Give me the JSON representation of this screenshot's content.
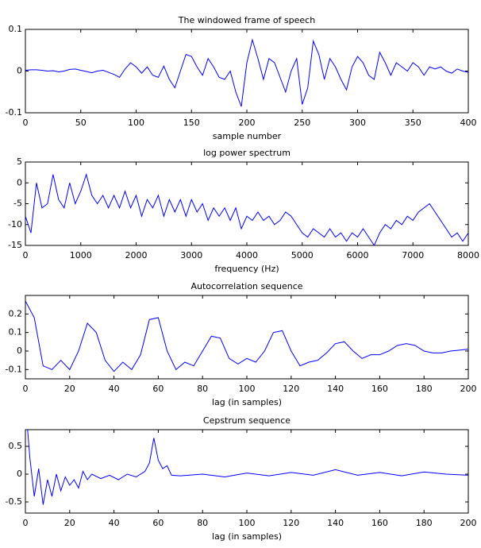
{
  "chart_data": [
    {
      "type": "line",
      "title": "The windowed frame of speech",
      "xlabel": "sample number",
      "x": [
        0,
        5,
        10,
        15,
        20,
        25,
        30,
        35,
        40,
        45,
        50,
        55,
        60,
        65,
        70,
        75,
        80,
        85,
        90,
        95,
        100,
        105,
        110,
        115,
        120,
        125,
        130,
        135,
        140,
        145,
        150,
        155,
        160,
        165,
        170,
        175,
        180,
        185,
        190,
        195,
        200,
        205,
        210,
        215,
        220,
        225,
        230,
        235,
        240,
        245,
        250,
        255,
        260,
        265,
        270,
        275,
        280,
        285,
        290,
        295,
        300,
        305,
        310,
        315,
        320,
        325,
        330,
        335,
        340,
        345,
        350,
        355,
        360,
        365,
        370,
        375,
        380,
        385,
        390,
        395,
        400
      ],
      "series": [
        {
          "color": "#0000ff",
          "values": [
            0.002,
            0.003,
            0.003,
            0.002,
            0.0,
            0.001,
            -0.002,
            0.0,
            0.004,
            0.005,
            0.002,
            -0.001,
            -0.004,
            0.0,
            0.002,
            -0.003,
            -0.008,
            -0.015,
            0.005,
            0.02,
            0.01,
            -0.005,
            0.01,
            -0.01,
            -0.015,
            0.012,
            -0.02,
            -0.04,
            0.0,
            0.04,
            0.035,
            0.01,
            -0.01,
            0.03,
            0.01,
            -0.015,
            -0.02,
            0.0,
            -0.05,
            -0.085,
            0.02,
            0.075,
            0.03,
            -0.02,
            0.03,
            0.02,
            -0.015,
            -0.05,
            0.0,
            0.03,
            -0.08,
            -0.04,
            0.072,
            0.04,
            -0.02,
            0.03,
            0.01,
            -0.02,
            -0.045,
            0.01,
            0.035,
            0.02,
            -0.01,
            -0.02,
            0.045,
            0.02,
            -0.01,
            0.02,
            0.01,
            0.0,
            0.02,
            0.01,
            -0.01,
            0.01,
            0.005,
            0.01,
            0.0,
            -0.005,
            0.005,
            0.0,
            -0.003
          ]
        }
      ],
      "xlim": [
        0,
        400
      ],
      "ylim": [
        -0.1,
        0.1
      ],
      "xticks": [
        0,
        50,
        100,
        150,
        200,
        250,
        300,
        350,
        400
      ],
      "yticks": [
        -0.1,
        0,
        0.1
      ]
    },
    {
      "type": "line",
      "title": "log power spectrum",
      "xlabel": "frequency (Hz)",
      "x": [
        0,
        100,
        200,
        300,
        400,
        500,
        600,
        700,
        800,
        900,
        1000,
        1100,
        1200,
        1300,
        1400,
        1500,
        1600,
        1700,
        1800,
        1900,
        2000,
        2100,
        2200,
        2300,
        2400,
        2500,
        2600,
        2700,
        2800,
        2900,
        3000,
        3100,
        3200,
        3300,
        3400,
        3500,
        3600,
        3700,
        3800,
        3900,
        4000,
        4100,
        4200,
        4300,
        4400,
        4500,
        4600,
        4700,
        4800,
        4900,
        5000,
        5100,
        5200,
        5300,
        5400,
        5500,
        5600,
        5700,
        5800,
        5900,
        6000,
        6100,
        6200,
        6300,
        6400,
        6500,
        6600,
        6700,
        6800,
        6900,
        7000,
        7100,
        7200,
        7300,
        7400,
        7500,
        7600,
        7700,
        7800,
        7900,
        8000
      ],
      "series": [
        {
          "color": "#0000ff",
          "values": [
            -8,
            -12,
            0,
            -6,
            -5,
            2,
            -4,
            -6,
            0,
            -5,
            -2,
            2,
            -3,
            -5,
            -3,
            -6,
            -3,
            -6,
            -2,
            -6,
            -3,
            -8,
            -4,
            -6,
            -3,
            -8,
            -4,
            -7,
            -4,
            -8,
            -4,
            -7,
            -5,
            -9,
            -6,
            -8,
            -6,
            -9,
            -6,
            -11,
            -8,
            -9,
            -7,
            -9,
            -8,
            -10,
            -9,
            -7,
            -8,
            -10,
            -12,
            -13,
            -11,
            -12,
            -13,
            -11,
            -13,
            -12,
            -14,
            -12,
            -13,
            -11,
            -13,
            -15,
            -12,
            -10,
            -11,
            -9,
            -10,
            -8,
            -9,
            -7,
            -6,
            -5,
            -7,
            -9,
            -11,
            -13,
            -12,
            -14,
            -12
          ]
        }
      ],
      "xlim": [
        0,
        8000
      ],
      "ylim": [
        -15,
        5
      ],
      "xticks": [
        0,
        1000,
        2000,
        3000,
        4000,
        5000,
        6000,
        7000,
        8000
      ],
      "yticks": [
        -15,
        -10,
        -5,
        0,
        5
      ]
    },
    {
      "type": "line",
      "title": "Autocorrelation sequence",
      "xlabel": "lag (in samples)",
      "x": [
        0,
        4,
        8,
        12,
        16,
        20,
        24,
        28,
        32,
        36,
        40,
        44,
        48,
        52,
        56,
        60,
        64,
        68,
        72,
        76,
        80,
        84,
        88,
        92,
        96,
        100,
        104,
        108,
        112,
        116,
        120,
        124,
        128,
        132,
        136,
        140,
        144,
        148,
        152,
        156,
        160,
        164,
        168,
        172,
        176,
        180,
        184,
        188,
        192,
        196,
        200
      ],
      "series": [
        {
          "color": "#0000ff",
          "values": [
            0.27,
            0.18,
            -0.08,
            -0.1,
            -0.05,
            -0.1,
            0.0,
            0.15,
            0.1,
            -0.05,
            -0.11,
            -0.06,
            -0.1,
            -0.02,
            0.17,
            0.18,
            0.0,
            -0.1,
            -0.06,
            -0.08,
            0.0,
            0.08,
            0.07,
            -0.04,
            -0.07,
            -0.04,
            -0.06,
            0.0,
            0.1,
            0.11,
            0.0,
            -0.08,
            -0.06,
            -0.05,
            -0.01,
            0.04,
            0.05,
            0.0,
            -0.04,
            -0.02,
            -0.02,
            0.0,
            0.03,
            0.04,
            0.03,
            0.0,
            -0.01,
            -0.01,
            0.0,
            0.005,
            0.01
          ]
        }
      ],
      "xlim": [
        0,
        200
      ],
      "ylim": [
        -0.15,
        0.3
      ],
      "xticks": [
        0,
        20,
        40,
        60,
        80,
        100,
        120,
        140,
        160,
        180,
        200
      ],
      "yticks": [
        -0.1,
        0,
        0.1,
        0.2
      ]
    },
    {
      "type": "line",
      "title": "Cepstrum sequence",
      "xlabel": "lag (in samples)",
      "x": [
        1,
        2,
        4,
        6,
        8,
        10,
        12,
        14,
        16,
        18,
        20,
        22,
        24,
        26,
        28,
        30,
        34,
        38,
        42,
        46,
        50,
        54,
        56,
        58,
        60,
        62,
        64,
        66,
        70,
        80,
        90,
        100,
        110,
        120,
        130,
        140,
        150,
        160,
        170,
        180,
        190,
        200
      ],
      "series": [
        {
          "color": "#0000ff",
          "values": [
            0.8,
            0.3,
            -0.4,
            0.1,
            -0.55,
            -0.1,
            -0.4,
            0.0,
            -0.3,
            -0.05,
            -0.2,
            -0.1,
            -0.25,
            0.05,
            -0.1,
            0.0,
            -0.08,
            -0.02,
            -0.1,
            0.0,
            -0.05,
            0.05,
            0.2,
            0.65,
            0.25,
            0.1,
            0.15,
            -0.02,
            -0.03,
            0.0,
            -0.05,
            0.02,
            -0.03,
            0.03,
            -0.02,
            0.08,
            -0.02,
            0.03,
            -0.03,
            0.04,
            0.0,
            -0.02
          ]
        }
      ],
      "xlim": [
        0,
        200
      ],
      "ylim": [
        -0.7,
        0.8
      ],
      "xticks": [
        0,
        20,
        40,
        60,
        80,
        100,
        120,
        140,
        160,
        180,
        200
      ],
      "yticks": [
        -0.5,
        0,
        0.5
      ]
    }
  ]
}
